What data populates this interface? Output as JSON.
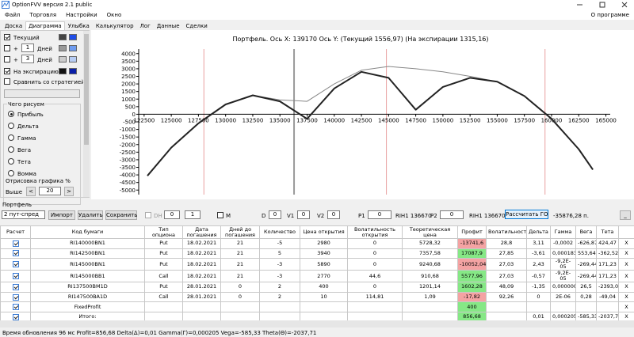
{
  "window": {
    "title": "OptionFVV версия 2.1 public"
  },
  "menu": {
    "items": [
      "Файл",
      "Торговля",
      "Настройки",
      "Окно"
    ],
    "about": "О программе"
  },
  "tabs": {
    "items": [
      "Доска",
      "Диаграмма",
      "Улыбка",
      "Калькулятор",
      "Лог",
      "Данные",
      "Сделки"
    ],
    "active": 1
  },
  "left_panel": {
    "current": "Текущий",
    "plus": "+",
    "days": "Дней",
    "days1": "1",
    "days2": "3",
    "expiration": "На экспирацию",
    "compare": "Сравнить со стратегией",
    "group_title": "Чего рисуем",
    "options": [
      "Прибыль",
      "Дельта",
      "Гамма",
      "Вега",
      "Тета",
      "Вомма"
    ],
    "selected": 0,
    "draw_label": "Отрисовка графика %",
    "above": "Выше",
    "above_value": "20"
  },
  "chart_data": {
    "type": "line",
    "title": "Портфель. Ось X: 139170 Ось Y:  (Текущий 1556,97)  (На экспирации 1315,16)",
    "xlim": [
      122000,
      165400
    ],
    "ylim": [
      -5300,
      4300
    ],
    "xticks": [
      122500,
      125000,
      127500,
      130000,
      132500,
      135000,
      137500,
      140000,
      142500,
      145000,
      147500,
      150000,
      152500,
      155000,
      157500,
      160000,
      162500,
      165000
    ],
    "yticks": [
      4000,
      3500,
      3000,
      2500,
      2000,
      1500,
      1000,
      500,
      0,
      -500,
      -1000,
      -1500,
      -2000,
      -2500,
      -3000,
      -3500,
      -4000,
      -4500,
      -5000
    ],
    "vlines": [
      {
        "value": 128000,
        "color": "#e8a0a0"
      },
      {
        "value": 136300,
        "color": "#999999"
      },
      {
        "value": 144800,
        "color": "#e8a0a0"
      },
      {
        "value": 159400,
        "color": "#e8a0a0"
      }
    ],
    "series": [
      {
        "x": [
          122800,
          125000,
          127500,
          130000,
          132500,
          135000,
          137500,
          140000,
          142500,
          145000,
          147500,
          150000,
          152500,
          155000,
          157500,
          160000,
          162500,
          163800
        ],
        "values": [
          -4060,
          -2200,
          -600,
          650,
          1250,
          950,
          850,
          2000,
          2900,
          3150,
          3000,
          2800,
          2500,
          2150,
          1200,
          -300,
          -2300,
          -3650
        ],
        "color": "#888888",
        "width": 1
      },
      {
        "x": [
          122800,
          125000,
          127500,
          130000,
          132500,
          135000,
          137500,
          140000,
          142500,
          145000,
          147500,
          150000,
          152500,
          155000,
          157500,
          160000,
          162500,
          163800
        ],
        "values": [
          -4060,
          -2200,
          -600,
          650,
          1250,
          850,
          -300,
          1700,
          2800,
          2400,
          300,
          1800,
          2400,
          2150,
          1200,
          -300,
          -2300,
          -3650
        ],
        "color": "#222222",
        "width": 2
      }
    ]
  },
  "toolbar": {
    "portfolio": "Портфель",
    "strategy": "2 пут-спред",
    "import": "Импорт",
    "delete": "Удалить",
    "save": "Сохранить",
    "dh": "DH",
    "dh1": "0",
    "dh2": "1",
    "m": "M",
    "d": "D",
    "d_val": "0",
    "v1": "V1",
    "v1_val": "0",
    "v2": "V2",
    "v2_val": "0",
    "p1": "P1",
    "p1_val": "0",
    "p1_info": "RIH1 136670",
    "p2": "P2",
    "p2_val": "0",
    "p2_info": "RIH1 136670",
    "calc": "Рассчитать ГО",
    "go": "-35876,28 п.",
    "min": "_"
  },
  "table": {
    "columns": [
      "Расчет",
      "Код бумаги",
      "Тип опциона",
      "Дата погашения",
      "Дней до погашения",
      "Количество",
      "Цена открытия",
      "Волатильность открытия",
      "Теоретическая цена",
      "Профит",
      "Волатильность",
      "Дельта",
      "Гамма",
      "Вега",
      "Тета"
    ],
    "delete_label": "X",
    "rows": [
      {
        "cells": [
          "RI140000BN1",
          "Put",
          "18.02.2021",
          "21",
          "-5",
          "2980",
          "0",
          "5728,32",
          "-13741,6",
          "28,8",
          "3,11",
          "-0,0002",
          "-626,87",
          "424,47"
        ],
        "profit_color": "#f4a3a3"
      },
      {
        "cells": [
          "RI142500BN1",
          "Put",
          "18.02.2021",
          "21",
          "5",
          "3940",
          "0",
          "7357,58",
          "17087,9",
          "27,85",
          "-3,61",
          "0,000183",
          "553,64",
          "-362,52"
        ],
        "profit_color": "#86e886"
      },
      {
        "cells": [
          "RI145000BN1",
          "Put",
          "18.02.2021",
          "21",
          "-3",
          "5890",
          "0",
          "9240,68",
          "-10052,04",
          "27,03",
          "2,43",
          "-9,2E-05",
          "-269,44",
          "171,23"
        ],
        "profit_color": "#f4a3a3"
      },
      {
        "cells": [
          "RI145000BB1",
          "Call",
          "18.02.2021",
          "21",
          "-3",
          "2770",
          "44,6",
          "910,68",
          "5577,96",
          "27,03",
          "-0,57",
          "-9,2E-05",
          "-269,44",
          "171,23"
        ],
        "profit_color": "#86e886"
      },
      {
        "cells": [
          "RI137500BM1D",
          "Put",
          "28.01.2021",
          "0",
          "2",
          "400",
          "0",
          "1201,14",
          "1602,28",
          "48,09",
          "-1,35",
          "0,0000004",
          "26,5",
          "-2393,08"
        ],
        "profit_color": "#86e886"
      },
      {
        "cells": [
          "RI147500BA1D",
          "Call",
          "28.01.2021",
          "0",
          "2",
          "10",
          "114,81",
          "1,09",
          "-17,82",
          "92,26",
          "0",
          "2E-06",
          "0,28",
          "-49,04"
        ],
        "profit_color": "#f4a3a3"
      },
      {
        "cells": [
          "FixedProfit",
          null,
          null,
          null,
          null,
          null,
          null,
          null,
          "400",
          null,
          null,
          null,
          null,
          null
        ],
        "profit_color": "#86e886"
      },
      {
        "cells": [
          "Итого:",
          null,
          null,
          null,
          null,
          null,
          null,
          null,
          "856,68",
          null,
          "0,01",
          "0,000205",
          "-585,33",
          "-2037,71"
        ],
        "profit_color": "#86e886"
      }
    ]
  },
  "status": {
    "text": "Время обновления 96 мс  Profit=856,68 Delta(Δ)=0,01 Gamma(Γ)=0,000205 Vega=-585,33 Theta(Θ)=-2037,71"
  }
}
